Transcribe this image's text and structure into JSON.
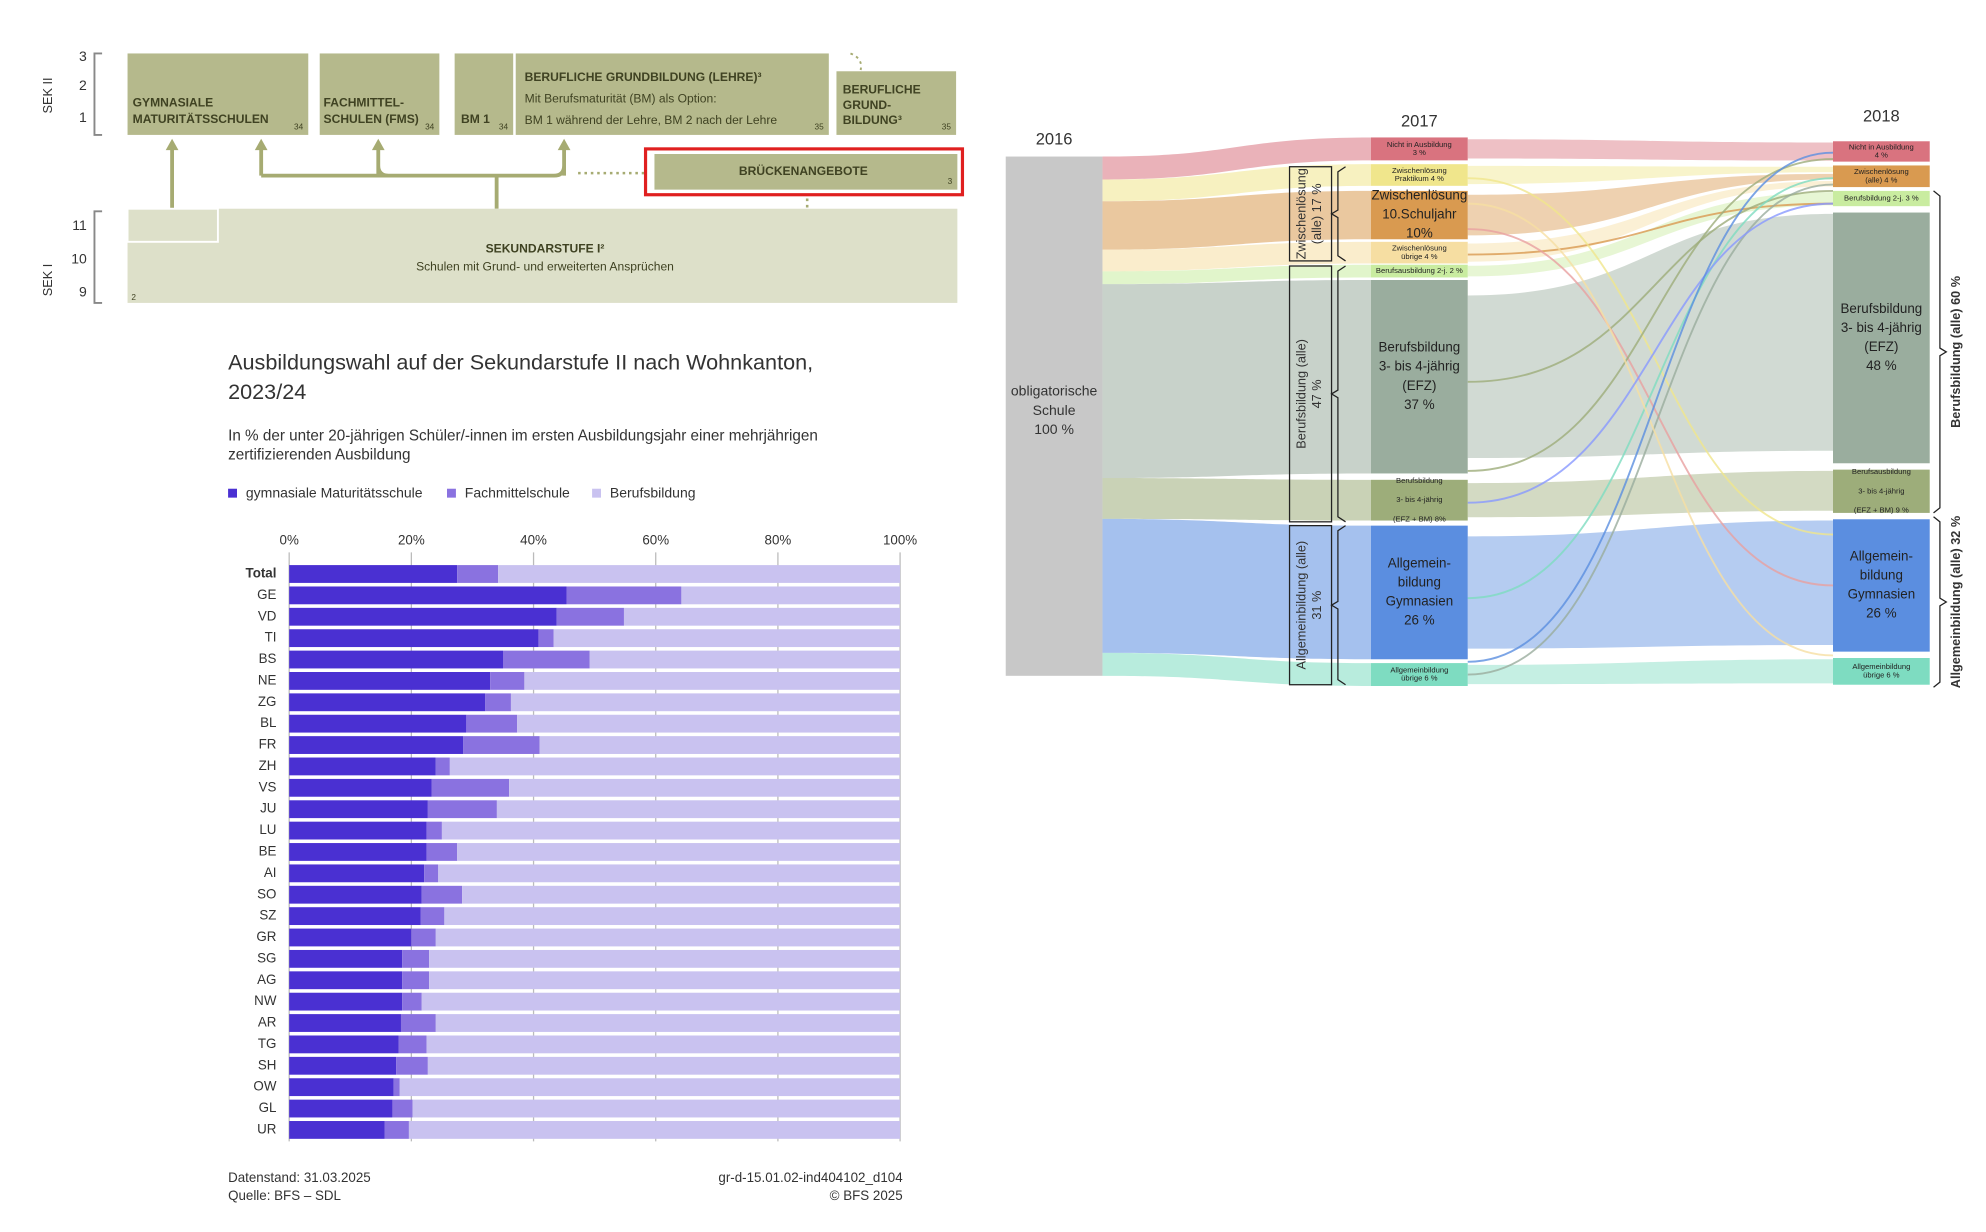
{
  "diagram": {
    "sek2_label": "SEK II",
    "sek1_label": "SEK I",
    "grades": [
      "3",
      "2",
      "1",
      "11",
      "10",
      "9"
    ],
    "boxes": [
      {
        "lines": [
          "GYMNASIALE",
          "MATURITÄTSSCHULEN"
        ],
        "note": "34"
      },
      {
        "lines": [
          "FACHMITTEL-",
          "SCHULEN (FMS)"
        ],
        "note": "34"
      },
      {
        "lines": [
          "BM 1"
        ],
        "note": "34"
      },
      {
        "lines": [
          "BERUFLICHE GRUNDBILDUNG (LEHRE)³",
          "Mit Berufsmaturität (BM) als Option:",
          "BM 1 während der Lehre, BM 2 nach der Lehre"
        ],
        "note": "35"
      },
      {
        "lines": [
          "BERUFLICHE",
          "GRUND-",
          "BILDUNG³"
        ],
        "note": "35"
      }
    ],
    "bridge": {
      "label": "BRÜCKENANGEBOTE",
      "note": "3"
    },
    "sek1": {
      "lines": [
        "SEKUNDARSTUFE I²",
        "Schulen mit Grund- und erweiterten Ansprüchen"
      ],
      "note": "2"
    }
  },
  "chart_data": {
    "type": "stacked-bar",
    "orientation": "horizontal",
    "title": [
      "Ausbildungswahl auf der Sekundarstufe II nach Wohnkanton,",
      "2023/24"
    ],
    "subtitle": [
      "In % der unter 20-jährigen Schüler/-innen im ersten Ausbildungsjahr einer mehrjährigen",
      "zertifizierenden Ausbildung"
    ],
    "categories": [
      "Total",
      "GE",
      "VD",
      "TI",
      "BS",
      "NE",
      "ZG",
      "BL",
      "FR",
      "ZH",
      "VS",
      "JU",
      "LU",
      "BE",
      "AI",
      "SO",
      "SZ",
      "GR",
      "SG",
      "AG",
      "NW",
      "AR",
      "TG",
      "SH",
      "OW",
      "GL",
      "UR"
    ],
    "series": [
      {
        "name": "gymnasiale Maturitätsschule",
        "color": "#4a30d2",
        "values": [
          27.5,
          45.4,
          43.8,
          40.8,
          35,
          32.9,
          32.1,
          29,
          28.5,
          24,
          23.3,
          22.7,
          22.5,
          22.5,
          22.1,
          21.7,
          21.5,
          20,
          18.5,
          18.5,
          18.5,
          18.3,
          17.9,
          17.5,
          17.1,
          16.9,
          15.6
        ]
      },
      {
        "name": "Fachmittelschule",
        "color": "#8a72e0",
        "values": [
          6.7,
          18.8,
          11,
          2.5,
          14.2,
          5.6,
          4.2,
          8.3,
          12.5,
          2.3,
          12.7,
          11.3,
          2.5,
          5,
          2.3,
          6.6,
          3.9,
          4,
          4.4,
          4.4,
          3.2,
          5.7,
          4.6,
          5.2,
          1,
          3.3,
          4
        ]
      },
      {
        "name": "Berufsbildung",
        "color": "#c9c2f0",
        "values": [
          65.8,
          35.8,
          45.2,
          56.7,
          50.8,
          61.5,
          63.7,
          62.7,
          59,
          73.7,
          64,
          66,
          75,
          72.5,
          75.6,
          71.7,
          74.6,
          76,
          77.1,
          77.1,
          78.3,
          76,
          77.5,
          77.3,
          81.9,
          79.8,
          80.4
        ]
      }
    ],
    "xlim": [
      0,
      100
    ],
    "xticks": [
      {
        "value": 0,
        "label": "0%"
      },
      {
        "value": 20,
        "label": "20%"
      },
      {
        "value": 40,
        "label": "40%"
      },
      {
        "value": 60,
        "label": "60%"
      },
      {
        "value": 80,
        "label": "80%"
      },
      {
        "value": 100,
        "label": "100%"
      }
    ],
    "grid": true,
    "legend": "top-left",
    "footer_left": [
      "Datenstand: 31.03.2025",
      "Quelle: BFS – SDL"
    ],
    "footer_right": [
      "gr-d-15.01.02-ind404102_d104",
      "© BFS 2025"
    ]
  },
  "sankey": {
    "years": [
      "2016",
      "2017",
      "2018"
    ],
    "source": {
      "lines": [
        "obligatorische",
        "Schule",
        "100 %"
      ]
    },
    "nodes_2017": [
      {
        "lines": [
          "Nicht in Ausbildung",
          "3 %"
        ],
        "color": "#d9737f"
      },
      {
        "lines": [
          "Zwischenlösung",
          "Praktikum 4 %"
        ],
        "color": "#f0e68c"
      },
      {
        "lines": [
          "Zwischenlösung",
          "10.Schuljahr",
          "10%"
        ],
        "color": "#d99a50"
      },
      {
        "lines": [
          "Zwischenlösung",
          "übrige 4 %"
        ],
        "color": "#f6dea2"
      },
      {
        "lines": [
          "Berufsausbildung 2-j. 2 %"
        ],
        "color": "#c9eca0"
      },
      {
        "lines": [
          "Berufsbildung",
          "3- bis 4-jährig",
          "(EFZ)",
          "37 %"
        ],
        "color": "#9aad9e"
      },
      {
        "lines": [
          "Berufsbildung",
          "3- bis 4-jährig",
          "(EFZ + BM) 8%"
        ],
        "color": "#9dad7a"
      },
      {
        "lines": [
          "Allgemein-",
          "bildung",
          "Gymnasien",
          "26 %"
        ],
        "color": "#5b8ee0"
      },
      {
        "lines": [
          "Allgemeinbildung",
          "übrige 6 %"
        ],
        "color": "#7edcc1"
      }
    ],
    "groups_2017": [
      {
        "lines": [
          "Zwischenlösung",
          "(alle)   17 %"
        ]
      },
      {
        "lines": [
          "Berufsbildung (alle)",
          "47 %"
        ]
      },
      {
        "lines": [
          "Allgemeinbildung (alle)",
          "31 %"
        ]
      }
    ],
    "nodes_2018": [
      {
        "lines": [
          "Nicht in Ausbildung",
          "4 %"
        ],
        "color": "#d9737f"
      },
      {
        "lines": [
          "Zwischenlösung",
          "(alle) 4 %"
        ],
        "color": "#d99a50"
      },
      {
        "lines": [
          "Berufsbildung 2-j. 3 %"
        ],
        "color": "#c9eca0"
      },
      {
        "lines": [
          "Berufsbildung",
          "3- bis 4-jährig",
          "(EFZ)",
          "48 %"
        ],
        "color": "#9aad9e"
      },
      {
        "lines": [
          "Berufsausbildung",
          "3- bis 4-jährig",
          "(EFZ + BM) 9 %"
        ],
        "color": "#9dad7a"
      },
      {
        "lines": [
          "Allgemein-",
          "bildung",
          "Gymnasien",
          "26 %"
        ],
        "color": "#5b8ee0"
      },
      {
        "lines": [
          "Allgemeinbildung",
          "übrige 6 %"
        ],
        "color": "#7edcc1"
      }
    ],
    "groups_2018": [
      {
        "lines": [
          "Berufsbildung (alle) 60 %"
        ]
      },
      {
        "lines": [
          "Allgemeinbildung (alle) 32 %"
        ]
      }
    ]
  }
}
